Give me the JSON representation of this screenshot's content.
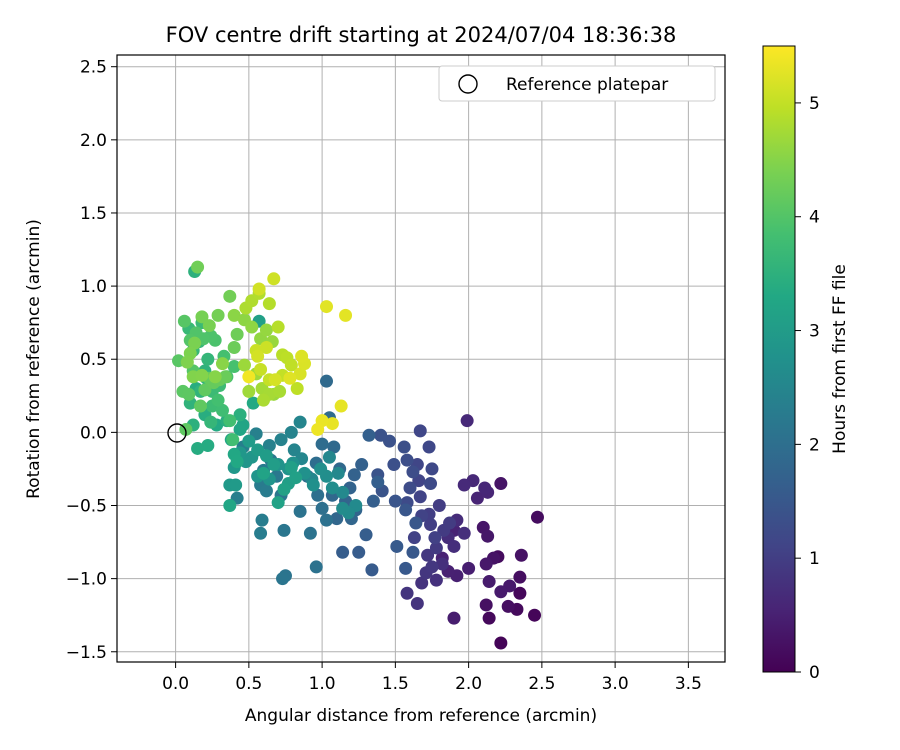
{
  "chart_data": {
    "type": "scatter",
    "title": "FOV centre drift starting at 2024/07/04 18:36:38",
    "xlabel": "Angular distance from reference (arcmin)",
    "ylabel": "Rotation from reference (arcmin)",
    "xlim": [
      -0.4,
      3.75
    ],
    "ylim": [
      -1.57,
      2.58
    ],
    "xticks": [
      "0.0",
      "0.5",
      "1.0",
      "1.5",
      "2.0",
      "2.5",
      "3.0",
      "3.5"
    ],
    "yticks": [
      "−1.5",
      "−1.0",
      "−0.5",
      "0.0",
      "0.5",
      "1.0",
      "1.5",
      "2.0",
      "2.5"
    ],
    "grid": true,
    "legend": {
      "location": "upper-right",
      "entries": [
        "Reference platepar"
      ]
    },
    "reference_point": {
      "x": 0.0,
      "y": 0.0
    },
    "colorbar": {
      "label": "Hours from first FF file",
      "range": [
        0,
        5.5
      ],
      "ticks": [
        "0",
        "1",
        "2",
        "3",
        "4",
        "5"
      ],
      "colormap": "viridis"
    },
    "points": [
      [
        2.22,
        -1.44,
        0.05
      ],
      [
        2.45,
        -1.25,
        0.08
      ],
      [
        2.35,
        -1.1,
        0.1
      ],
      [
        2.14,
        -1.27,
        0.12
      ],
      [
        2.33,
        -1.21,
        0.14
      ],
      [
        2.2,
        -0.85,
        0.16
      ],
      [
        2.47,
        -0.58,
        0.18
      ],
      [
        2.35,
        -0.99,
        0.2
      ],
      [
        2.27,
        -1.19,
        0.22
      ],
      [
        2.12,
        -1.18,
        0.24
      ],
      [
        2.36,
        -0.84,
        0.26
      ],
      [
        2.17,
        -0.86,
        0.28
      ],
      [
        2.22,
        -0.35,
        0.3
      ],
      [
        2.1,
        -0.65,
        0.32
      ],
      [
        2.13,
        -0.71,
        0.34
      ],
      [
        2.12,
        -0.9,
        0.36
      ],
      [
        2.28,
        -1.05,
        0.38
      ],
      [
        2.22,
        -1.09,
        0.4
      ],
      [
        2.14,
        -1.02,
        0.42
      ],
      [
        1.9,
        -1.27,
        0.44
      ],
      [
        2.0,
        -0.93,
        0.46
      ],
      [
        1.92,
        -0.98,
        0.48
      ],
      [
        1.86,
        -0.95,
        0.5
      ],
      [
        1.82,
        -0.86,
        0.52
      ],
      [
        1.9,
        -0.67,
        0.54
      ],
      [
        2.06,
        -0.45,
        0.56
      ],
      [
        2.13,
        -0.41,
        0.58
      ],
      [
        2.11,
        -0.38,
        0.6
      ],
      [
        2.03,
        -0.33,
        0.62
      ],
      [
        1.99,
        0.08,
        0.64
      ],
      [
        1.97,
        -0.36,
        0.66
      ],
      [
        1.92,
        -0.6,
        0.68
      ],
      [
        1.86,
        -0.72,
        0.7
      ],
      [
        1.9,
        -0.78,
        0.72
      ],
      [
        1.97,
        -0.69,
        0.74
      ],
      [
        1.82,
        -0.9,
        0.76
      ],
      [
        1.78,
        -1.01,
        0.78
      ],
      [
        1.68,
        -1.03,
        0.8
      ],
      [
        1.65,
        -1.17,
        0.82
      ],
      [
        1.58,
        -1.1,
        0.84
      ],
      [
        1.71,
        -0.96,
        0.86
      ],
      [
        1.75,
        -0.92,
        0.88
      ],
      [
        1.72,
        -0.84,
        0.9
      ],
      [
        1.78,
        -0.79,
        0.92
      ],
      [
        1.83,
        -0.67,
        0.94
      ],
      [
        1.87,
        -0.62,
        0.96
      ],
      [
        1.8,
        -0.5,
        0.98
      ],
      [
        1.73,
        -0.56,
        1.0
      ],
      [
        1.74,
        -0.63,
        1.02
      ],
      [
        1.77,
        -0.72,
        1.04
      ],
      [
        1.63,
        -0.72,
        1.06
      ],
      [
        1.68,
        -0.57,
        1.08
      ],
      [
        1.67,
        -0.44,
        1.1
      ],
      [
        1.66,
        -0.33,
        1.12
      ],
      [
        1.65,
        -0.22,
        1.14
      ],
      [
        1.67,
        0.01,
        1.16
      ],
      [
        1.73,
        -0.1,
        1.18
      ],
      [
        1.75,
        -0.25,
        1.2
      ],
      [
        1.74,
        -0.35,
        1.22
      ],
      [
        1.58,
        -0.48,
        1.24
      ],
      [
        1.6,
        -0.38,
        1.26
      ],
      [
        1.62,
        -0.27,
        1.28
      ],
      [
        1.58,
        -0.19,
        1.3
      ],
      [
        1.56,
        -0.1,
        1.32
      ],
      [
        1.49,
        -0.22,
        1.34
      ],
      [
        1.46,
        -0.06,
        1.36
      ],
      [
        1.4,
        -0.02,
        1.38
      ],
      [
        1.38,
        -0.29,
        1.4
      ],
      [
        1.41,
        -0.4,
        1.42
      ],
      [
        1.5,
        -0.47,
        1.44
      ],
      [
        1.57,
        -0.53,
        1.46
      ],
      [
        1.64,
        -0.62,
        1.48
      ],
      [
        1.62,
        -0.82,
        1.5
      ],
      [
        1.57,
        -0.93,
        1.52
      ],
      [
        1.51,
        -0.78,
        1.54
      ],
      [
        1.34,
        -0.94,
        1.56
      ],
      [
        1.25,
        -0.82,
        1.58
      ],
      [
        1.14,
        -0.82,
        1.6
      ],
      [
        1.3,
        -0.7,
        1.62
      ],
      [
        1.35,
        -0.47,
        1.64
      ],
      [
        1.38,
        -0.34,
        1.66
      ],
      [
        1.32,
        -0.02,
        1.68
      ],
      [
        1.27,
        -0.22,
        1.7
      ],
      [
        1.22,
        -0.29,
        1.72
      ],
      [
        1.19,
        -0.38,
        1.74
      ],
      [
        1.16,
        -0.47,
        1.76
      ],
      [
        1.23,
        -0.53,
        1.78
      ],
      [
        1.2,
        -0.59,
        1.8
      ],
      [
        1.1,
        -0.59,
        1.82
      ],
      [
        1.07,
        -0.43,
        1.84
      ],
      [
        1.12,
        -0.25,
        1.86
      ],
      [
        1.08,
        -0.1,
        1.88
      ],
      [
        1.03,
        0.35,
        1.9
      ],
      [
        1.05,
        0.1,
        1.92
      ],
      [
        1.0,
        -0.08,
        1.94
      ],
      [
        0.96,
        -0.21,
        1.96
      ],
      [
        0.9,
        -0.3,
        1.98
      ],
      [
        0.97,
        -0.43,
        2.0
      ],
      [
        1.0,
        -0.52,
        2.02
      ],
      [
        1.03,
        -0.6,
        2.04
      ],
      [
        0.96,
        -0.92,
        2.06
      ],
      [
        0.85,
        -0.54,
        2.08
      ],
      [
        0.92,
        -0.69,
        2.1
      ],
      [
        0.75,
        -0.98,
        2.12
      ],
      [
        0.73,
        -1.0,
        2.14
      ],
      [
        0.74,
        -0.67,
        2.16
      ],
      [
        0.72,
        -0.43,
        2.18
      ],
      [
        0.69,
        -0.3,
        2.2
      ],
      [
        0.65,
        -0.19,
        2.22
      ],
      [
        0.6,
        -0.26,
        2.24
      ],
      [
        0.58,
        -0.36,
        2.26
      ],
      [
        0.62,
        -0.4,
        2.28
      ],
      [
        0.59,
        -0.6,
        2.3
      ],
      [
        0.58,
        -0.69,
        2.32
      ],
      [
        0.42,
        -0.45,
        2.34
      ],
      [
        0.46,
        -0.1,
        2.36
      ],
      [
        0.55,
        -0.01,
        2.38
      ],
      [
        0.64,
        -0.09,
        2.4
      ],
      [
        0.72,
        -0.05,
        2.42
      ],
      [
        0.79,
        0.0,
        2.44
      ],
      [
        0.81,
        -0.12,
        2.46
      ],
      [
        0.85,
        0.07,
        2.48
      ],
      [
        0.86,
        -0.18,
        2.5
      ],
      [
        0.93,
        -0.32,
        2.52
      ],
      [
        1.05,
        -0.17,
        2.54
      ],
      [
        1.11,
        -0.28,
        2.56
      ],
      [
        1.14,
        -0.41,
        2.58
      ],
      [
        1.23,
        -0.5,
        2.6
      ],
      [
        1.18,
        -0.55,
        2.62
      ],
      [
        1.14,
        -0.52,
        2.64
      ],
      [
        1.07,
        -0.38,
        2.66
      ],
      [
        1.03,
        -0.3,
        2.68
      ],
      [
        0.99,
        -0.25,
        2.7
      ],
      [
        0.94,
        -0.36,
        2.72
      ],
      [
        0.88,
        -0.28,
        2.74
      ],
      [
        0.8,
        -0.21,
        2.76
      ],
      [
        0.77,
        -0.25,
        2.78
      ],
      [
        0.7,
        -0.22,
        2.8
      ],
      [
        0.64,
        -0.32,
        2.82
      ],
      [
        0.56,
        -0.3,
        2.84
      ],
      [
        0.52,
        -0.17,
        2.86
      ],
      [
        0.48,
        -0.2,
        2.88
      ],
      [
        0.44,
        -0.14,
        2.9
      ],
      [
        0.4,
        -0.24,
        2.92
      ],
      [
        0.37,
        -0.36,
        2.94
      ],
      [
        0.41,
        -0.36,
        2.96
      ],
      [
        0.5,
        -0.06,
        2.98
      ],
      [
        0.56,
        -0.12,
        3.0
      ],
      [
        0.62,
        -0.16,
        3.02
      ],
      [
        0.67,
        -0.22,
        3.04
      ],
      [
        0.77,
        -0.35,
        3.06
      ],
      [
        0.79,
        -0.24,
        3.08
      ],
      [
        0.82,
        -0.31,
        3.1
      ],
      [
        0.57,
        0.76,
        3.12
      ],
      [
        0.74,
        -0.39,
        3.14
      ],
      [
        0.7,
        -0.48,
        3.16
      ],
      [
        0.6,
        -0.28,
        3.18
      ],
      [
        0.46,
        0.05,
        3.2
      ],
      [
        0.38,
        -0.05,
        3.22
      ],
      [
        0.44,
        0.02,
        3.24
      ],
      [
        0.37,
        -0.5,
        3.26
      ],
      [
        0.4,
        -0.15,
        3.28
      ],
      [
        0.42,
        -0.2,
        3.3
      ],
      [
        0.53,
        0.2,
        3.32
      ],
      [
        0.28,
        0.05,
        3.34
      ],
      [
        0.22,
        -0.09,
        3.36
      ],
      [
        0.15,
        -0.11,
        3.38
      ],
      [
        0.14,
        0.3,
        3.4
      ],
      [
        0.2,
        0.12,
        3.42
      ],
      [
        0.35,
        0.08,
        3.44
      ],
      [
        0.44,
        0.12,
        3.46
      ],
      [
        0.12,
        0.05,
        3.48
      ],
      [
        0.13,
        1.1,
        3.5
      ],
      [
        0.2,
        0.42,
        3.52
      ],
      [
        0.1,
        0.2,
        3.54
      ],
      [
        0.17,
        0.28,
        3.56
      ],
      [
        0.21,
        0.37,
        3.58
      ],
      [
        0.22,
        0.5,
        3.6
      ],
      [
        0.24,
        0.07,
        3.62
      ],
      [
        0.16,
        0.62,
        3.64
      ],
      [
        0.12,
        0.56,
        3.66
      ],
      [
        0.09,
        0.71,
        3.68
      ],
      [
        0.18,
        0.75,
        3.7
      ],
      [
        0.25,
        0.28,
        3.72
      ],
      [
        0.3,
        0.32,
        3.74
      ],
      [
        0.25,
        0.18,
        3.76
      ],
      [
        0.32,
        0.15,
        3.78
      ],
      [
        0.39,
        -0.05,
        3.8
      ],
      [
        0.37,
        0.08,
        3.82
      ],
      [
        0.29,
        0.22,
        3.84
      ],
      [
        0.33,
        0.52,
        3.86
      ],
      [
        0.4,
        0.45,
        3.88
      ],
      [
        0.35,
        0.38,
        3.9
      ],
      [
        0.27,
        0.63,
        3.92
      ],
      [
        0.24,
        0.66,
        3.94
      ],
      [
        0.19,
        0.64,
        3.96
      ],
      [
        0.14,
        0.68,
        3.98
      ],
      [
        0.1,
        0.63,
        4.0
      ],
      [
        0.12,
        0.42,
        4.02
      ],
      [
        0.06,
        0.76,
        4.04
      ],
      [
        0.02,
        0.49,
        4.06
      ],
      [
        0.05,
        0.28,
        4.08
      ],
      [
        0.09,
        0.26,
        4.1
      ],
      [
        0.07,
        0.02,
        4.12
      ],
      [
        0.17,
        0.18,
        4.14
      ],
      [
        0.2,
        0.29,
        4.16
      ],
      [
        0.23,
        0.37,
        4.18
      ],
      [
        0.26,
        0.34,
        4.2
      ],
      [
        0.3,
        0.36,
        4.22
      ],
      [
        0.34,
        0.38,
        4.24
      ],
      [
        0.4,
        0.58,
        4.26
      ],
      [
        0.42,
        0.67,
        4.28
      ],
      [
        0.15,
        1.13,
        4.3
      ],
      [
        0.37,
        0.93,
        4.32
      ],
      [
        0.29,
        0.8,
        4.34
      ],
      [
        0.18,
        0.79,
        4.36
      ],
      [
        0.23,
        0.73,
        4.38
      ],
      [
        0.13,
        0.61,
        4.4
      ],
      [
        0.1,
        0.54,
        4.42
      ],
      [
        0.08,
        0.48,
        4.44
      ],
      [
        0.12,
        0.38,
        4.46
      ],
      [
        0.18,
        0.39,
        4.48
      ],
      [
        0.27,
        0.38,
        4.5
      ],
      [
        0.32,
        0.47,
        4.52
      ],
      [
        0.4,
        0.8,
        4.54
      ],
      [
        0.47,
        0.77,
        4.56
      ],
      [
        0.52,
        0.72,
        4.58
      ],
      [
        0.58,
        0.64,
        4.6
      ],
      [
        0.62,
        0.7,
        4.62
      ],
      [
        0.66,
        0.62,
        4.64
      ],
      [
        0.67,
        0.26,
        4.66
      ],
      [
        0.47,
        0.46,
        4.68
      ],
      [
        0.5,
        0.28,
        4.7
      ],
      [
        0.55,
        0.4,
        4.72
      ],
      [
        0.59,
        0.3,
        4.74
      ],
      [
        0.64,
        0.26,
        4.76
      ],
      [
        0.71,
        0.28,
        4.78
      ],
      [
        0.6,
        0.22,
        4.8
      ],
      [
        0.48,
        0.85,
        4.82
      ],
      [
        0.52,
        0.9,
        4.84
      ],
      [
        0.57,
        0.95,
        4.86
      ],
      [
        0.64,
        0.88,
        4.88
      ],
      [
        0.7,
        0.72,
        4.9
      ],
      [
        0.73,
        0.53,
        4.92
      ],
      [
        0.76,
        0.51,
        4.94
      ],
      [
        0.83,
        0.3,
        4.96
      ],
      [
        0.79,
        0.46,
        4.98
      ],
      [
        0.73,
        0.39,
        5.0
      ],
      [
        0.64,
        0.36,
        5.02
      ],
      [
        0.58,
        0.43,
        5.04
      ],
      [
        0.55,
        0.56,
        5.06
      ],
      [
        0.62,
        0.58,
        5.08
      ],
      [
        0.67,
        1.05,
        5.1
      ],
      [
        0.57,
        0.98,
        5.12
      ],
      [
        0.56,
        0.52,
        5.14
      ],
      [
        0.68,
        0.36,
        5.16
      ],
      [
        0.85,
        0.4,
        5.18
      ],
      [
        0.88,
        0.47,
        5.2
      ],
      [
        0.86,
        0.52,
        5.22
      ],
      [
        0.78,
        0.37,
        5.24
      ],
      [
        1.03,
        0.86,
        5.26
      ],
      [
        1.16,
        0.8,
        5.28
      ],
      [
        1.13,
        0.18,
        5.3
      ],
      [
        1.07,
        0.06,
        5.32
      ],
      [
        1.0,
        0.08,
        5.34
      ],
      [
        0.97,
        0.02,
        5.36
      ],
      [
        0.5,
        0.38,
        5.4
      ]
    ]
  }
}
